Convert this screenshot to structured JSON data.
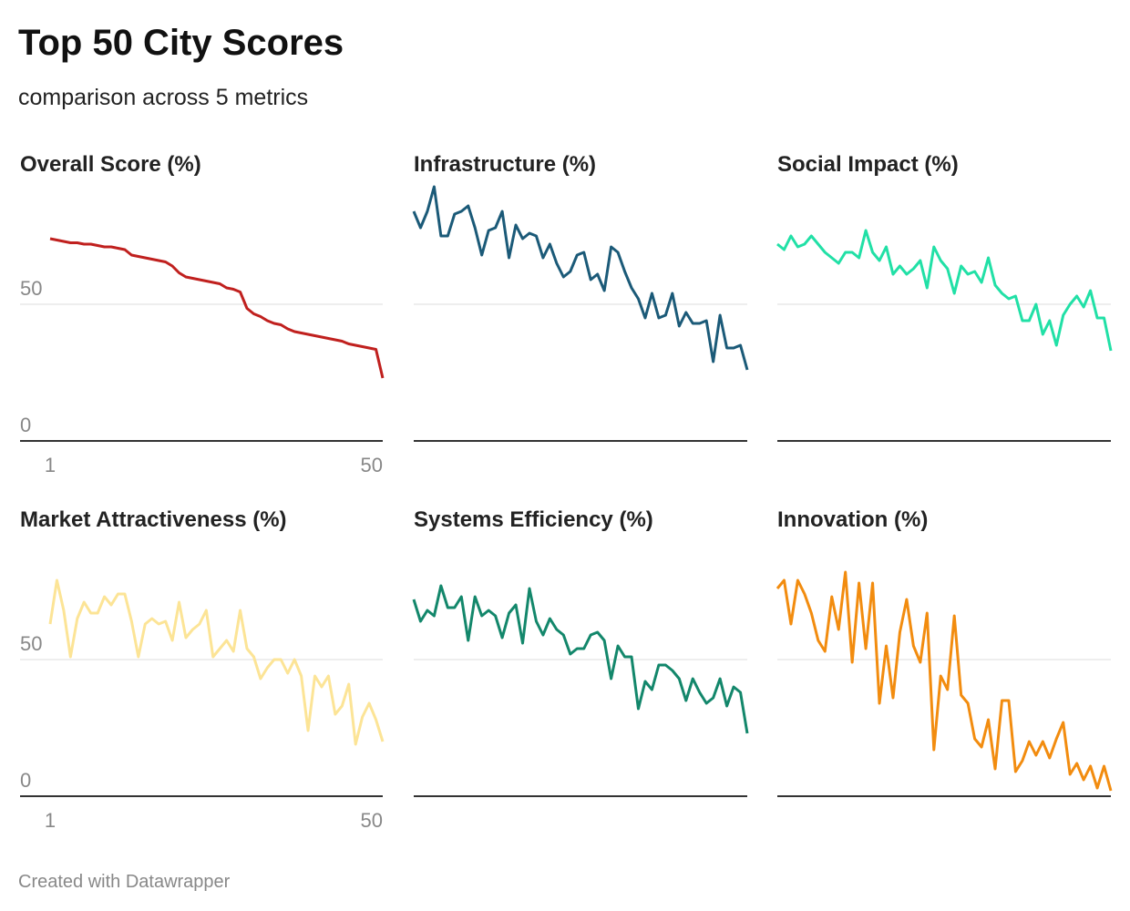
{
  "title": "Top 50 City Scores",
  "subtitle": "comparison across 5 metrics",
  "footer": "Created with Datawrapper",
  "chart_data": [
    {
      "type": "line",
      "title": "Overall Score (%)",
      "color": "#c0201e",
      "ylim": [
        0,
        100
      ],
      "yticks": [
        0,
        50
      ],
      "xlim": [
        1,
        50
      ],
      "xticks": [
        1,
        50
      ],
      "x": [
        1,
        2,
        3,
        4,
        5,
        6,
        7,
        8,
        9,
        10,
        11,
        12,
        13,
        14,
        15,
        16,
        17,
        18,
        19,
        20,
        21,
        22,
        23,
        24,
        25,
        26,
        27,
        28,
        29,
        30,
        31,
        32,
        33,
        34,
        35,
        36,
        37,
        38,
        39,
        40,
        41,
        42,
        43,
        44,
        45,
        46,
        47,
        48,
        49,
        50
      ],
      "values": [
        74,
        73.5,
        73,
        72.5,
        72.5,
        72,
        72,
        71.5,
        71,
        71,
        70.5,
        70,
        68,
        67.5,
        67,
        66.5,
        66,
        65.5,
        64,
        61.5,
        60,
        59.5,
        59,
        58.5,
        58,
        57.5,
        56,
        55.5,
        54.5,
        48.5,
        46.5,
        45.5,
        44,
        43,
        42.5,
        41,
        40,
        39.5,
        39,
        38.5,
        38,
        37.5,
        37,
        36.5,
        35.5,
        35,
        34.5,
        34,
        33.5,
        23
      ]
    },
    {
      "type": "line",
      "title": "Infrastructure (%)",
      "color": "#1b5a78",
      "ylim": [
        0,
        100
      ],
      "yticks": [
        0,
        50
      ],
      "xlim": [
        1,
        50
      ],
      "x": [
        1,
        2,
        3,
        4,
        5,
        6,
        7,
        8,
        9,
        10,
        11,
        12,
        13,
        14,
        15,
        16,
        17,
        18,
        19,
        20,
        21,
        22,
        23,
        24,
        25,
        26,
        27,
        28,
        29,
        30,
        31,
        32,
        33,
        34,
        35,
        36,
        37,
        38,
        39,
        40,
        41,
        42,
        43,
        44,
        45,
        46,
        47,
        48,
        49,
        50
      ],
      "values": [
        84,
        78,
        84,
        93,
        75,
        75,
        83,
        84,
        86,
        78,
        68,
        77,
        78,
        84,
        67,
        79,
        74,
        76,
        75,
        67,
        72,
        65,
        60,
        62,
        68,
        69,
        59,
        61,
        55,
        71,
        69,
        62,
        56,
        52,
        45,
        54,
        45,
        46,
        54,
        42,
        47,
        43,
        43,
        44,
        29,
        46,
        34,
        34,
        35,
        26
      ]
    },
    {
      "type": "line",
      "title": "Social Impact (%)",
      "color": "#21e0a6",
      "ylim": [
        0,
        100
      ],
      "yticks": [
        0,
        50
      ],
      "xlim": [
        1,
        50
      ],
      "x": [
        1,
        2,
        3,
        4,
        5,
        6,
        7,
        8,
        9,
        10,
        11,
        12,
        13,
        14,
        15,
        16,
        17,
        18,
        19,
        20,
        21,
        22,
        23,
        24,
        25,
        26,
        27,
        28,
        29,
        30,
        31,
        32,
        33,
        34,
        35,
        36,
        37,
        38,
        39,
        40,
        41,
        42,
        43,
        44,
        45,
        46,
        47,
        48,
        49,
        50
      ],
      "values": [
        72,
        70,
        75,
        71,
        72,
        75,
        72,
        69,
        67,
        65,
        69,
        69,
        67,
        77,
        69,
        66,
        71,
        61,
        64,
        61,
        63,
        66,
        56,
        71,
        66,
        63,
        54,
        64,
        61,
        62,
        58,
        67,
        57,
        54,
        52,
        53,
        44,
        44,
        50,
        39,
        44,
        35,
        46,
        50,
        53,
        49,
        55,
        45,
        45,
        33
      ]
    },
    {
      "type": "line",
      "title": "Market Attractiveness (%)",
      "color": "#fce496",
      "ylim": [
        0,
        100
      ],
      "yticks": [
        0,
        50
      ],
      "xlim": [
        1,
        50
      ],
      "xticks": [
        1,
        50
      ],
      "x": [
        1,
        2,
        3,
        4,
        5,
        6,
        7,
        8,
        9,
        10,
        11,
        12,
        13,
        14,
        15,
        16,
        17,
        18,
        19,
        20,
        21,
        22,
        23,
        24,
        25,
        26,
        27,
        28,
        29,
        30,
        31,
        32,
        33,
        34,
        35,
        36,
        37,
        38,
        39,
        40,
        41,
        42,
        43,
        44,
        45,
        46,
        47,
        48,
        49,
        50
      ],
      "values": [
        63,
        79,
        68,
        51,
        65,
        71,
        67,
        67,
        73,
        70,
        74,
        74,
        64,
        51,
        63,
        65,
        63,
        64,
        57,
        71,
        58,
        61,
        63,
        68,
        51,
        54,
        57,
        53,
        68,
        54,
        51,
        43,
        47,
        50,
        50,
        45,
        50,
        44,
        24,
        44,
        40,
        44,
        30,
        33,
        41,
        19,
        29,
        34,
        28,
        20
      ]
    },
    {
      "type": "line",
      "title": "Systems Efficiency (%)",
      "color": "#13876b",
      "ylim": [
        0,
        100
      ],
      "yticks": [
        0,
        50
      ],
      "xlim": [
        1,
        50
      ],
      "x": [
        1,
        2,
        3,
        4,
        5,
        6,
        7,
        8,
        9,
        10,
        11,
        12,
        13,
        14,
        15,
        16,
        17,
        18,
        19,
        20,
        21,
        22,
        23,
        24,
        25,
        26,
        27,
        28,
        29,
        30,
        31,
        32,
        33,
        34,
        35,
        36,
        37,
        38,
        39,
        40,
        41,
        42,
        43,
        44,
        45,
        46,
        47,
        48,
        49,
        50
      ],
      "values": [
        72,
        64,
        68,
        66,
        77,
        69,
        69,
        73,
        57,
        73,
        66,
        68,
        66,
        58,
        67,
        70,
        56,
        76,
        64,
        59,
        65,
        61,
        59,
        52,
        54,
        54,
        59,
        60,
        57,
        43,
        55,
        51,
        51,
        32,
        42,
        39,
        48,
        48,
        46,
        43,
        35,
        43,
        38,
        34,
        36,
        43,
        33,
        40,
        38,
        23
      ]
    },
    {
      "type": "line",
      "title": "Innovation (%)",
      "color": "#f28c0f",
      "ylim": [
        0,
        100
      ],
      "yticks": [
        0,
        50
      ],
      "xlim": [
        1,
        50
      ],
      "x": [
        1,
        2,
        3,
        4,
        5,
        6,
        7,
        8,
        9,
        10,
        11,
        12,
        13,
        14,
        15,
        16,
        17,
        18,
        19,
        20,
        21,
        22,
        23,
        24,
        25,
        26,
        27,
        28,
        29,
        30,
        31,
        32,
        33,
        34,
        35,
        36,
        37,
        38,
        39,
        40,
        41,
        42,
        43,
        44,
        45,
        46,
        47,
        48,
        49,
        50
      ],
      "values": [
        76,
        79,
        63,
        79,
        74,
        67,
        57,
        53,
        73,
        61,
        82,
        49,
        78,
        54,
        78,
        34,
        55,
        36,
        60,
        72,
        55,
        49,
        67,
        17,
        44,
        39,
        66,
        37,
        34,
        21,
        18,
        28,
        10,
        35,
        35,
        9,
        13,
        20,
        15,
        20,
        14,
        21,
        27,
        8,
        12,
        6,
        11,
        3,
        11,
        2
      ]
    }
  ]
}
